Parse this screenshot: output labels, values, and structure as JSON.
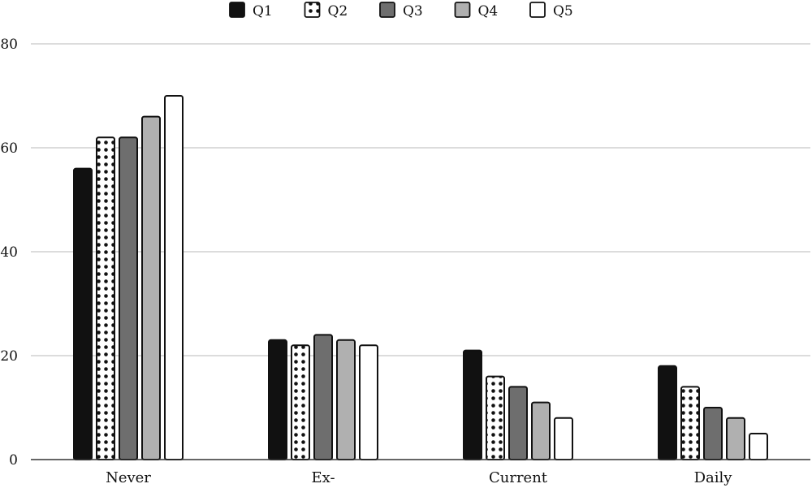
{
  "chart_data": {
    "type": "bar",
    "categories": [
      "Never",
      "Ex-",
      "Current",
      "Daily"
    ],
    "series": [
      {
        "name": "Q1",
        "fill": "solid",
        "color": "#111111",
        "values": [
          56,
          23,
          21,
          18
        ]
      },
      {
        "name": "Q2",
        "fill": "dots",
        "color": "#ffffff",
        "values": [
          62,
          22,
          16,
          14
        ]
      },
      {
        "name": "Q3",
        "fill": "solid",
        "color": "#6e6e6e",
        "values": [
          62,
          24,
          14,
          10
        ]
      },
      {
        "name": "Q4",
        "fill": "solid",
        "color": "#b0b0b0",
        "values": [
          66,
          23,
          11,
          8
        ]
      },
      {
        "name": "Q5",
        "fill": "solid",
        "color": "#ffffff",
        "values": [
          70,
          22,
          8,
          5
        ]
      }
    ],
    "yticks": [
      0,
      20,
      40,
      60,
      80
    ],
    "ylim": [
      0,
      80
    ],
    "grid": true,
    "legend": "top-center"
  }
}
